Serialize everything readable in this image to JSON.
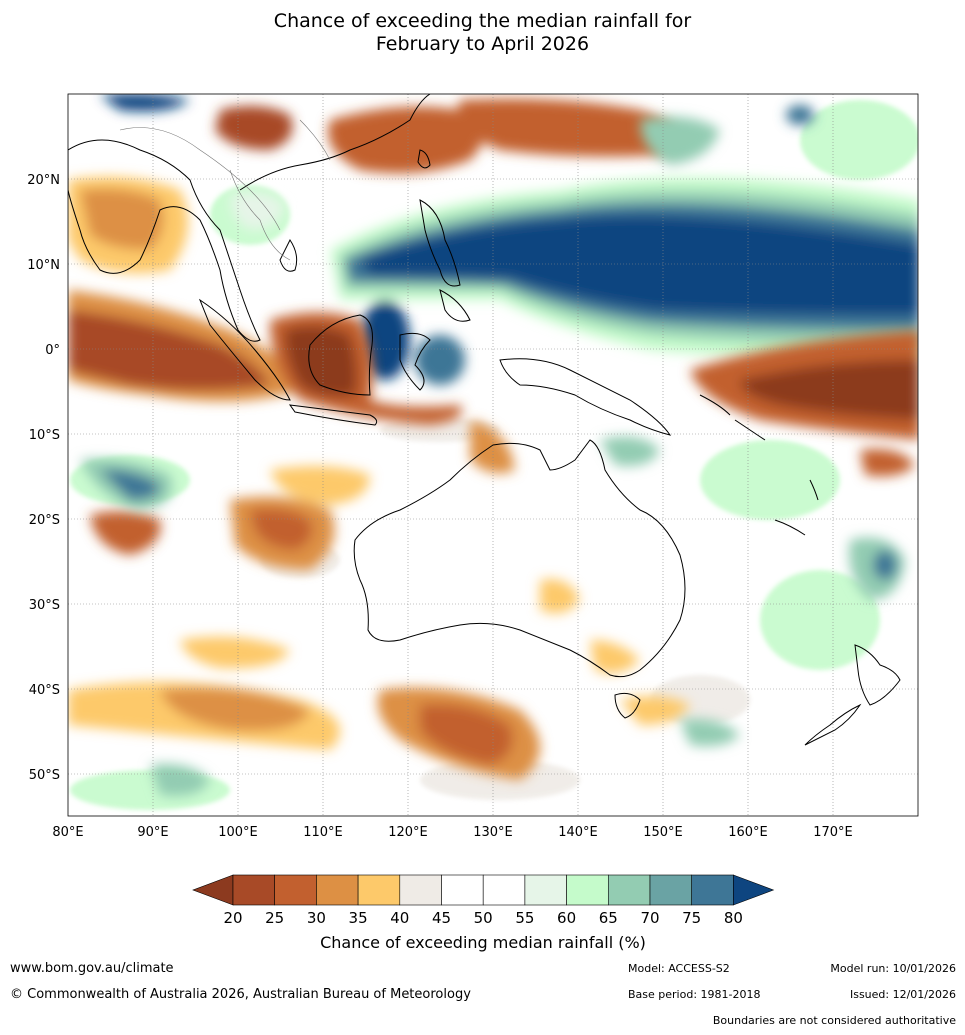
{
  "title": {
    "line1": "Chance of exceeding the median rainfall for",
    "line2": "February to April 2026"
  },
  "map": {
    "projection": "equirectangular",
    "lon_range": [
      80,
      180
    ],
    "lat_range": [
      -55,
      30
    ],
    "lon_ticks": [
      "80°E",
      "90°E",
      "100°E",
      "110°E",
      "120°E",
      "130°E",
      "140°E",
      "150°E",
      "160°E",
      "170°E"
    ],
    "lat_ticks": [
      "20°N",
      "10°N",
      "0°",
      "10°S",
      "20°S",
      "30°S",
      "40°S",
      "50°S"
    ]
  },
  "colorbar": {
    "title": "Chance of exceeding median rainfall (%)",
    "labels": [
      "20",
      "25",
      "30",
      "35",
      "40",
      "45",
      "50",
      "55",
      "60",
      "65",
      "70",
      "75",
      "80"
    ],
    "colors": [
      "#8c3a1f",
      "#a84a27",
      "#c2602f",
      "#dd9044",
      "#fdc96a",
      "#efebe6",
      "#ffffff",
      "#ffffff",
      "#e6f5e8",
      "#c5fbcb",
      "#93ccb2",
      "#6aa3a4",
      "#3e7696",
      "#0e4580"
    ]
  },
  "footer": {
    "url": "www.bom.gov.au/climate",
    "copyright": "© Commonwealth of Australia 2026, Australian Bureau of Meteorology",
    "model": "Model: ACCESS-S2",
    "base_period": "Base period: 1981-2018",
    "model_run": "Model run: 10/01/2026",
    "issued": "Issued: 12/01/2026",
    "disclaimer": "Boundaries are not considered authoritative"
  }
}
